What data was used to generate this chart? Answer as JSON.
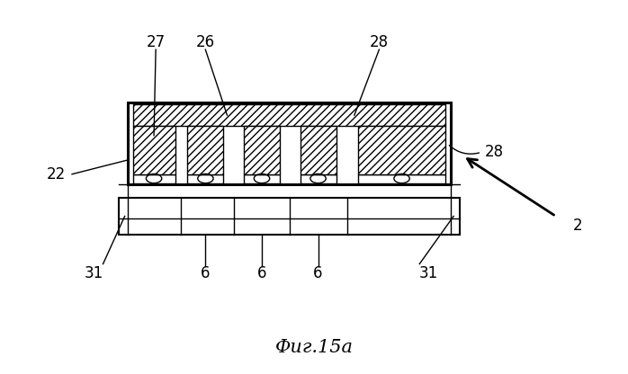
{
  "fig_width": 6.98,
  "fig_height": 4.16,
  "dpi": 100,
  "bg_color": "#ffffff",
  "title": "Фиг.15a",
  "title_fontsize": 15,
  "label_fontsize": 12,
  "OX": 0.2,
  "OY": 0.37,
  "OW": 0.52,
  "OH": 0.36
}
